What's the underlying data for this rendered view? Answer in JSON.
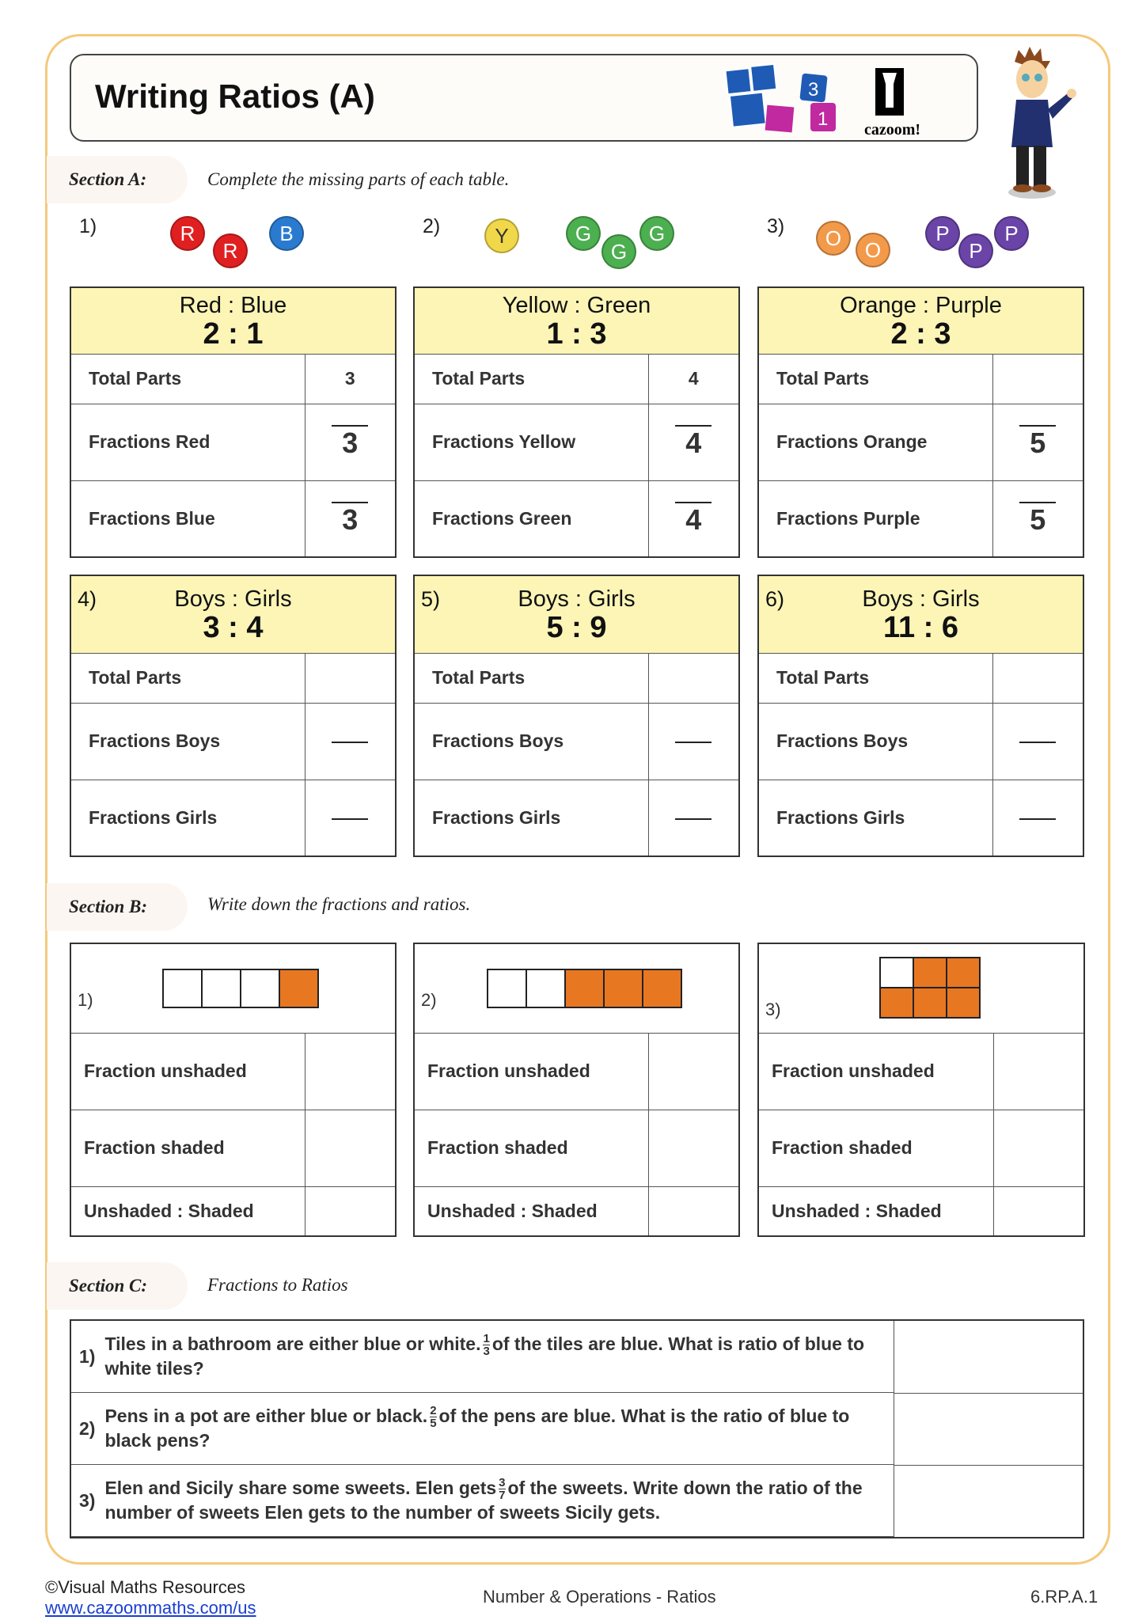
{
  "header": {
    "title": "Writing Ratios (A)",
    "logo_text": "cazoom!",
    "logo_tiles": [
      "3",
      "1"
    ]
  },
  "section_a": {
    "label": "Section A:",
    "instruction": "Complete the missing parts of each table.",
    "questions": [
      {
        "num": "1)",
        "balls": [
          {
            "t": "R",
            "c": "#e02020"
          },
          {
            "t": "R",
            "c": "#e02020"
          },
          {
            "t": "B",
            "c": "#2a7bd0"
          }
        ],
        "title": "Red : Blue",
        "ratio": "2 : 1",
        "rows": [
          {
            "label": "Total Parts",
            "value": "3"
          },
          {
            "label": "Fractions Red",
            "den": "3"
          },
          {
            "label": "Fractions Blue",
            "den": "3"
          }
        ]
      },
      {
        "num": "2)",
        "balls": [
          {
            "t": "Y",
            "c": "#f0d84a"
          },
          {
            "t": "G",
            "c": "#4caf50"
          },
          {
            "t": "G",
            "c": "#4caf50"
          },
          {
            "t": "G",
            "c": "#4caf50"
          }
        ],
        "title": "Yellow : Green",
        "ratio": "1 : 3",
        "rows": [
          {
            "label": "Total Parts",
            "value": "4"
          },
          {
            "label": "Fractions Yellow",
            "den": "4"
          },
          {
            "label": "Fractions Green",
            "den": "4"
          }
        ]
      },
      {
        "num": "3)",
        "balls": [
          {
            "t": "O",
            "c": "#f39a4a"
          },
          {
            "t": "O",
            "c": "#f39a4a"
          },
          {
            "t": "P",
            "c": "#6b44a8"
          },
          {
            "t": "P",
            "c": "#6b44a8"
          },
          {
            "t": "P",
            "c": "#6b44a8"
          }
        ],
        "title": "Orange : Purple",
        "ratio": "2 : 3",
        "rows": [
          {
            "label": "Total Parts",
            "value": ""
          },
          {
            "label": "Fractions Orange",
            "den": "5"
          },
          {
            "label": "Fractions Purple",
            "den": "5"
          }
        ]
      },
      {
        "num": "4)",
        "title": "Boys : Girls",
        "ratio": "3 : 4",
        "rows": [
          {
            "label": "Total Parts",
            "value": ""
          },
          {
            "label": "Fractions Boys",
            "den": ""
          },
          {
            "label": "Fractions Girls",
            "den": ""
          }
        ]
      },
      {
        "num": "5)",
        "title": "Boys : Girls",
        "ratio": "5 : 9",
        "rows": [
          {
            "label": "Total Parts",
            "value": ""
          },
          {
            "label": "Fractions Boys",
            "den": ""
          },
          {
            "label": "Fractions Girls",
            "den": ""
          }
        ]
      },
      {
        "num": "6)",
        "title": "Boys : Girls",
        "ratio": "11 : 6",
        "rows": [
          {
            "label": "Total Parts",
            "value": ""
          },
          {
            "label": "Fractions Boys",
            "den": ""
          },
          {
            "label": "Fractions Girls",
            "den": ""
          }
        ]
      }
    ]
  },
  "section_b": {
    "label": "Section B:",
    "instruction": "Write down the fractions and ratios.",
    "shade_color": "#e87722",
    "questions": [
      {
        "num": "1)",
        "cells": [
          0,
          0,
          0,
          1
        ],
        "rows": [
          "Fraction unshaded",
          "Fraction shaded",
          "Unshaded : Shaded"
        ]
      },
      {
        "num": "2)",
        "cells": [
          0,
          0,
          1,
          1,
          1
        ],
        "rows": [
          "Fraction unshaded",
          "Fraction shaded",
          "Unshaded : Shaded"
        ]
      },
      {
        "num": "3)",
        "grid": [
          [
            0,
            1,
            1
          ],
          [
            1,
            1,
            1
          ]
        ],
        "rows": [
          "Fraction unshaded",
          "Fraction shaded",
          "Unshaded : Shaded"
        ]
      }
    ]
  },
  "section_c": {
    "label": "Section C:",
    "instruction": "Fractions to Ratios",
    "questions": [
      {
        "num": "1)",
        "before": "Tiles in a bathroom are either blue or white.",
        "fn": "1",
        "fd": "3",
        "after": "of the tiles are blue. What is ratio of blue to white tiles?"
      },
      {
        "num": "2)",
        "before": "Pens in a pot are either blue or black.",
        "fn": "2",
        "fd": "5",
        "after": "of the pens are blue. What is the ratio of blue to black pens?"
      },
      {
        "num": "3)",
        "before": "Elen and Sicily share some sweets. Elen gets",
        "fn": "3",
        "fd": "7",
        "after": "of the sweets. Write down the ratio of the number of sweets Elen gets to the number of sweets Sicily gets."
      }
    ]
  },
  "footer": {
    "copyright": "©Visual Maths Resources",
    "link": "www.cazoommaths.com/us",
    "topic": "Number & Operations - Ratios",
    "code": "6.RP.A.1"
  }
}
